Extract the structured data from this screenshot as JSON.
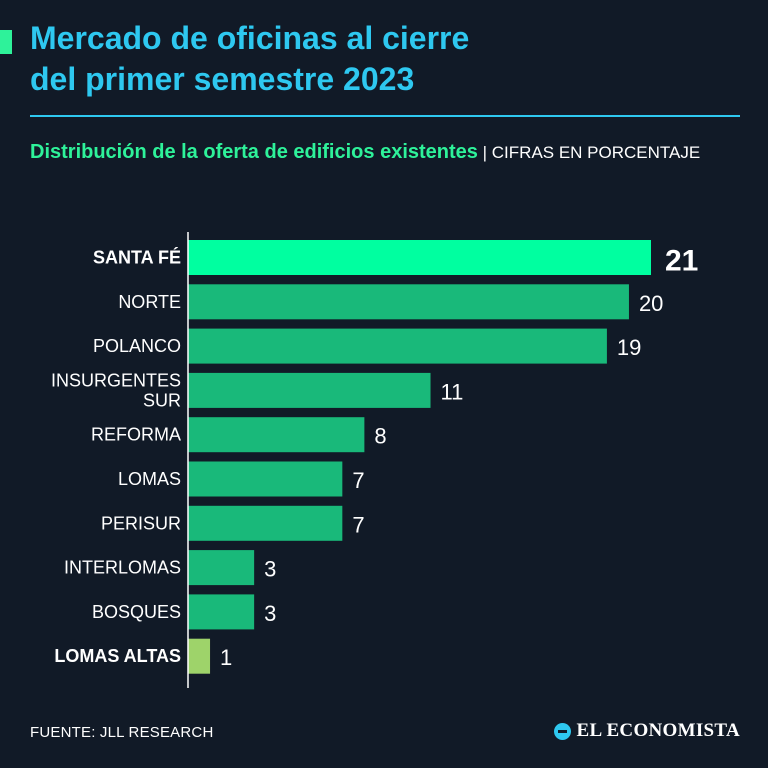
{
  "header": {
    "title_line1": "Mercado de oficinas al cierre",
    "title_line2": "del primer semestre 2023"
  },
  "subtitle": {
    "main": "Distribución de la oferta de edificios existentes",
    "separator": " | ",
    "units": "CIFRAS EN PORCENTAJE"
  },
  "colors": {
    "background": "#111a27",
    "title": "#2ec8f0",
    "accent": "#2ef29a",
    "bar_highlight": "#00ffa0",
    "bar_default": "#19b97a",
    "bar_low": "#9ed36a"
  },
  "chart_data": {
    "type": "bar",
    "orientation": "horizontal",
    "title": "Distribución de la oferta de edificios existentes",
    "units": "CIFRAS EN PORCENTAJE",
    "xlim": [
      0,
      21
    ],
    "categories": [
      "SANTA FÉ",
      "NORTE",
      "POLANCO",
      "INSURGENTES SUR",
      "REFORMA",
      "LOMAS",
      "PERISUR",
      "INTERLOMAS",
      "BOSQUES",
      "LOMAS ALTAS"
    ],
    "label_lines": [
      [
        "SANTA FÉ"
      ],
      [
        "NORTE"
      ],
      [
        "POLANCO"
      ],
      [
        "INSURGENTES",
        "SUR"
      ],
      [
        "REFORMA"
      ],
      [
        "LOMAS"
      ],
      [
        "PERISUR"
      ],
      [
        "INTERLOMAS"
      ],
      [
        "BOSQUES"
      ],
      [
        "LOMAS ALTAS"
      ]
    ],
    "values": [
      21,
      20,
      19,
      11,
      8,
      7,
      7,
      3,
      3,
      1
    ],
    "highlight": [
      "max",
      null,
      null,
      null,
      null,
      null,
      null,
      null,
      null,
      "min"
    ]
  },
  "footer": {
    "source": "FUENTE: JLL RESEARCH",
    "logo_text": "EL ECONOMISTA"
  }
}
